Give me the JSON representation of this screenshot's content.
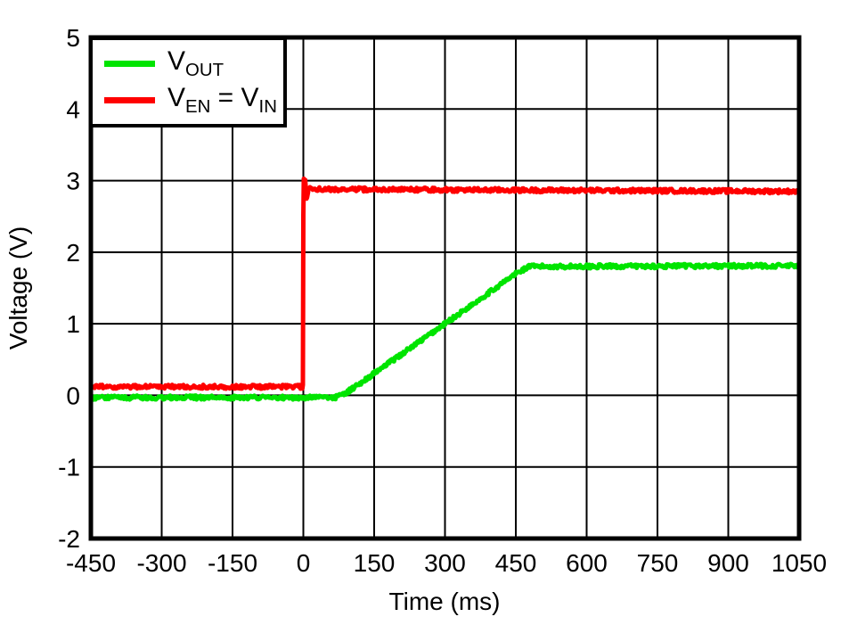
{
  "chart_data": {
    "type": "line",
    "title": "",
    "xlabel": "Time (ms)",
    "ylabel": "Voltage (V)",
    "xlim": [
      -450,
      1050
    ],
    "ylim": [
      -2,
      5
    ],
    "xticks": [
      -450,
      -300,
      -150,
      0,
      150,
      300,
      450,
      600,
      750,
      900,
      1050
    ],
    "yticks": [
      -2,
      -1,
      0,
      1,
      2,
      3,
      4,
      5
    ],
    "grid": true,
    "grid_color": "#000000",
    "background": "#FFFFFF",
    "border_color": "#000000",
    "legend_position": "top-left",
    "series": [
      {
        "name": "V_OUT",
        "color": "#00E400",
        "line_width": 5,
        "noise_v": 0.028,
        "description": "Output voltage: 0 V until ~75 ms, linear soft-start ramp to 1.8 V at ~480 ms, then flat at 1.8 V",
        "keypoints": [
          [
            -450,
            -0.03
          ],
          [
            68,
            -0.03
          ],
          [
            90,
            0.03
          ],
          [
            300,
            1.0
          ],
          [
            450,
            1.7
          ],
          [
            478,
            1.8
          ],
          [
            1050,
            1.81
          ]
        ]
      },
      {
        "name": "V_EN = V_IN",
        "color": "#FF0000",
        "line_width": 5,
        "noise_v": 0.028,
        "description": "Enable/input voltage: 0.12 V before t=0, step at t=0 peaking at 3.0 V, settling at 2.85 V",
        "keypoints": [
          [
            -450,
            0.12
          ],
          [
            -1,
            0.12
          ],
          [
            0,
            2.5
          ],
          [
            1,
            3.0
          ],
          [
            4,
            3.0
          ],
          [
            7,
            2.76
          ],
          [
            11,
            2.88
          ],
          [
            1050,
            2.85
          ]
        ]
      }
    ]
  },
  "legend": {
    "items": [
      {
        "name": "vout",
        "color": "#00E400",
        "label_plain": "V_OUT",
        "parts": [
          {
            "text": "V",
            "sub": "OUT"
          }
        ]
      },
      {
        "name": "ven-vin",
        "color": "#FF0000",
        "label_plain": "V_EN = V_IN",
        "parts": [
          {
            "text": "V",
            "sub": "EN"
          },
          {
            "text": " = V",
            "sub": "IN"
          }
        ]
      }
    ]
  }
}
